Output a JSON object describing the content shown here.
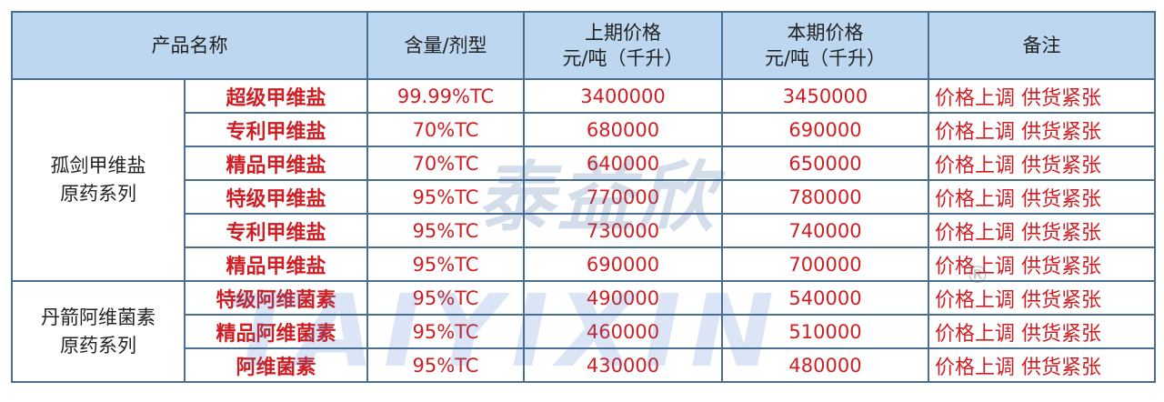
{
  "headers": {
    "product_name": "产品名称",
    "content": "含量/剂型",
    "prev_price_1": "上期价格",
    "prev_price_2": "元/吨（千升）",
    "curr_price_1": "本期价格",
    "curr_price_2": "元/吨（千升）",
    "remark": "备注"
  },
  "groups": [
    {
      "line1": "孤剑甲维盐",
      "line2": "原药系列"
    },
    {
      "line1": "丹箭阿维菌素",
      "line2": "原药系列"
    }
  ],
  "rows": [
    {
      "name": "超级甲维盐",
      "content": "99.99%TC",
      "prev": "3400000",
      "curr": "3450000",
      "remark": "价格上调  供货紧张"
    },
    {
      "name": "专利甲维盐",
      "content": "70%TC",
      "prev": "680000",
      "curr": "690000",
      "remark": "价格上调  供货紧张"
    },
    {
      "name": "精品甲维盐",
      "content": "70%TC",
      "prev": "640000",
      "curr": "650000",
      "remark": "价格上调  供货紧张"
    },
    {
      "name": "特级甲维盐",
      "content": "95%TC",
      "prev": "770000",
      "curr": "780000",
      "remark": "价格上调  供货紧张"
    },
    {
      "name": "专利甲维盐",
      "content": "95%TC",
      "prev": "730000",
      "curr": "740000",
      "remark": "价格上调  供货紧张"
    },
    {
      "name": "精品甲维盐",
      "content": "95%TC",
      "prev": "690000",
      "curr": "700000",
      "remark": "价格上调  供货紧张"
    },
    {
      "name": "特级阿维菌素",
      "content": "95%TC",
      "prev": "490000",
      "curr": "540000",
      "remark": "价格上调  供货紧张"
    },
    {
      "name": "精品阿维菌素",
      "content": "95%TC",
      "prev": "460000",
      "curr": "510000",
      "remark": "价格上调  供货紧张"
    },
    {
      "name": "阿维菌素",
      "content": "95%TC",
      "prev": "430000",
      "curr": "480000",
      "remark": "价格上调  供货紧张"
    }
  ],
  "watermark": {
    "cn": "泰益欣",
    "en": "TAIYIXIN",
    "mark": "®"
  },
  "colors": {
    "header_bg": "#bcd7ef",
    "border": "#4a6e8f",
    "text_red": "#d01f24"
  }
}
